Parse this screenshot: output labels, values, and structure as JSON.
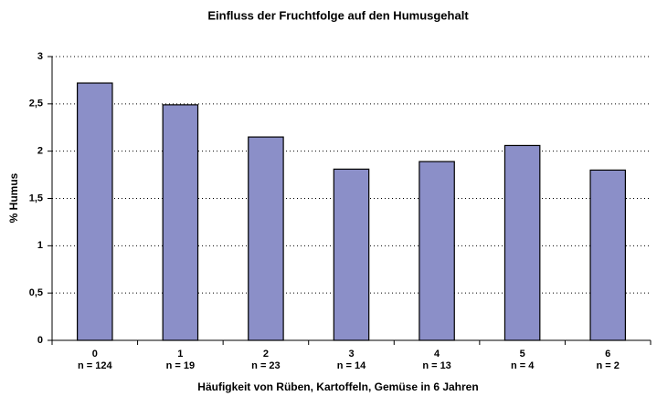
{
  "chart_data": {
    "type": "bar",
    "title": "Einfluss der Fruchtfolge auf den Humusgehalt",
    "x_label": "Häufigkeit von Rüben, Kartoffeln, Gemüse in 6 Jahren",
    "y_label": "% Humus",
    "categories": [
      "0",
      "1",
      "2",
      "3",
      "4",
      "5",
      "6"
    ],
    "category_sublabels": [
      "n = 124",
      "n = 19",
      "n = 23",
      "n = 14",
      "n = 13",
      "n = 4",
      "n = 2"
    ],
    "values": [
      2.72,
      2.49,
      2.15,
      1.81,
      1.89,
      2.06,
      1.8
    ],
    "color": "#8b8fc8",
    "ylim": [
      0,
      3
    ],
    "yticks": [
      0,
      {
        "value": 0.5,
        "label": "0,5"
      },
      1,
      {
        "value": 1.5,
        "label": "1,5"
      },
      2,
      {
        "value": 2.5,
        "label": "2,5"
      },
      3
    ],
    "grid": true
  }
}
